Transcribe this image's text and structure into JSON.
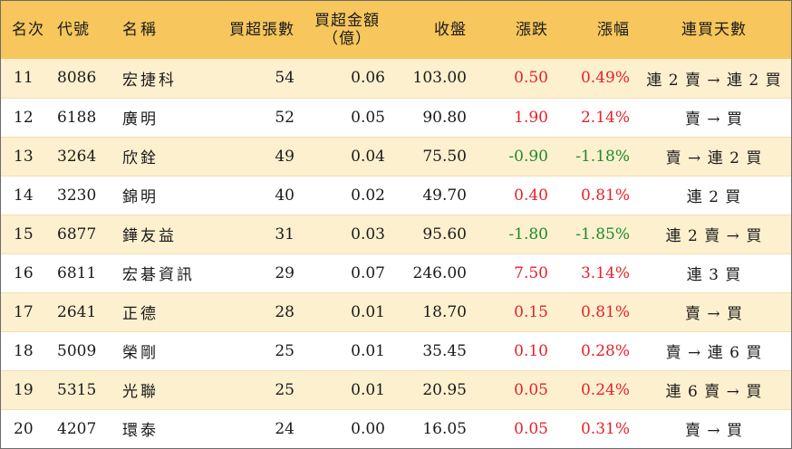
{
  "header": {
    "rank": "名次",
    "code": "代號",
    "name": "名稱",
    "net_buy_lots": "買超張數",
    "net_buy_amount_line1": "買超金額",
    "net_buy_amount_line2": "（億）",
    "close": "收盤",
    "change": "漲跌",
    "change_pct": "漲幅",
    "streak": "連買天數"
  },
  "colors": {
    "header_bg": "#f7c65c",
    "odd_row_bg": "#fdf0cf",
    "up": "#e8212a",
    "down": "#1e8a2a"
  },
  "rows": [
    {
      "rank": "11",
      "code": "8086",
      "name": "宏捷科",
      "lots": "54",
      "amount": "0.06",
      "close": "103.00",
      "change": "0.50",
      "pct": "0.49%",
      "streak": "連 2 賣 → 連 2 買",
      "dir": "up"
    },
    {
      "rank": "12",
      "code": "6188",
      "name": "廣明",
      "lots": "52",
      "amount": "0.05",
      "close": "90.80",
      "change": "1.90",
      "pct": "2.14%",
      "streak": "賣 → 買",
      "dir": "up"
    },
    {
      "rank": "13",
      "code": "3264",
      "name": "欣銓",
      "lots": "49",
      "amount": "0.04",
      "close": "75.50",
      "change": "-0.90",
      "pct": "-1.18%",
      "streak": "賣 → 連 2 買",
      "dir": "down"
    },
    {
      "rank": "14",
      "code": "3230",
      "name": "錦明",
      "lots": "40",
      "amount": "0.02",
      "close": "49.70",
      "change": "0.40",
      "pct": "0.81%",
      "streak": "連 2 買",
      "dir": "up"
    },
    {
      "rank": "15",
      "code": "6877",
      "name": "鏵友益",
      "lots": "31",
      "amount": "0.03",
      "close": "95.60",
      "change": "-1.80",
      "pct": "-1.85%",
      "streak": "連 2 賣 → 買",
      "dir": "down"
    },
    {
      "rank": "16",
      "code": "6811",
      "name": "宏碁資訊",
      "lots": "29",
      "amount": "0.07",
      "close": "246.00",
      "change": "7.50",
      "pct": "3.14%",
      "streak": "連 3 買",
      "dir": "up"
    },
    {
      "rank": "17",
      "code": "2641",
      "name": "正德",
      "lots": "28",
      "amount": "0.01",
      "close": "18.70",
      "change": "0.15",
      "pct": "0.81%",
      "streak": "賣 → 買",
      "dir": "up"
    },
    {
      "rank": "18",
      "code": "5009",
      "name": "榮剛",
      "lots": "25",
      "amount": "0.01",
      "close": "35.45",
      "change": "0.10",
      "pct": "0.28%",
      "streak": "賣 → 連 6 買",
      "dir": "up"
    },
    {
      "rank": "19",
      "code": "5315",
      "name": "光聯",
      "lots": "25",
      "amount": "0.01",
      "close": "20.95",
      "change": "0.05",
      "pct": "0.24%",
      "streak": "連 6 賣 → 買",
      "dir": "up"
    },
    {
      "rank": "20",
      "code": "4207",
      "name": "環泰",
      "lots": "24",
      "amount": "0.00",
      "close": "16.05",
      "change": "0.05",
      "pct": "0.31%",
      "streak": "賣 → 買",
      "dir": "up"
    }
  ]
}
